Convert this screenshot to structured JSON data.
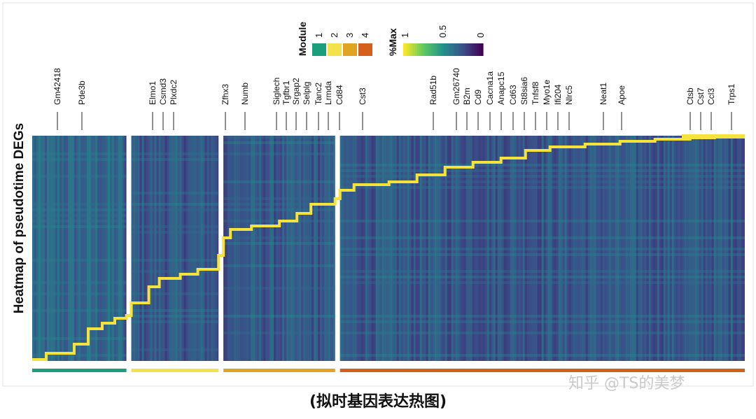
{
  "chart_data": {
    "type": "heatmap",
    "ylabel": "Heatmap of pseudotime DEGs",
    "caption": "(拟时基因表达热图)",
    "watermark": "知乎 @TS的美梦",
    "module_legend": {
      "title": "Module",
      "entries": [
        {
          "label": "1",
          "color": "#1a9e7c"
        },
        {
          "label": "2",
          "color": "#f2e24b"
        },
        {
          "label": "3",
          "color": "#e0a322"
        },
        {
          "label": "4",
          "color": "#d4601c"
        }
      ]
    },
    "colorbar": {
      "title": "%Max",
      "ticks": [
        {
          "label": "1",
          "value": 1
        },
        {
          "label": "0.5",
          "value": 0.5
        },
        {
          "label": "0",
          "value": 0
        }
      ]
    },
    "colors": {
      "trajectory": "#f5e23a",
      "panel_divider": "#ffffff",
      "viridis": [
        "#fde725",
        "#5ec962",
        "#21918c",
        "#3b528b",
        "#440154"
      ]
    },
    "panels": [
      {
        "module": "1",
        "color": "#1a9e7c",
        "genes": 0.135
      },
      {
        "module": "2",
        "color": "#f2e24b",
        "genes": 0.125
      },
      {
        "module": "3",
        "color": "#e0a322",
        "genes": 0.16
      },
      {
        "module": "4",
        "color": "#d4601c",
        "genes": 0.58
      }
    ],
    "gene_labels": [
      "Gm42418",
      "Pde3b",
      "Elmo1",
      "Csmd3",
      "Plxdc2",
      "Zfhx3",
      "Numb",
      "Siglech",
      "Tgfbr1",
      "Srgap2",
      "Selplg",
      "Tanc2",
      "Lrmda",
      "Cd84",
      "Cst3",
      "Rad51b",
      "Gm26740",
      "B2m",
      "Cd9",
      "Cacna1a",
      "Anapc15",
      "Cd63",
      "St8sia6",
      "Tnfsf8",
      "Myo1e",
      "Ifi204",
      "Nlrc5",
      "Neat1",
      "Apoe",
      "Ctsb",
      "Cst7",
      "Ccl3",
      "Trps1"
    ]
  }
}
